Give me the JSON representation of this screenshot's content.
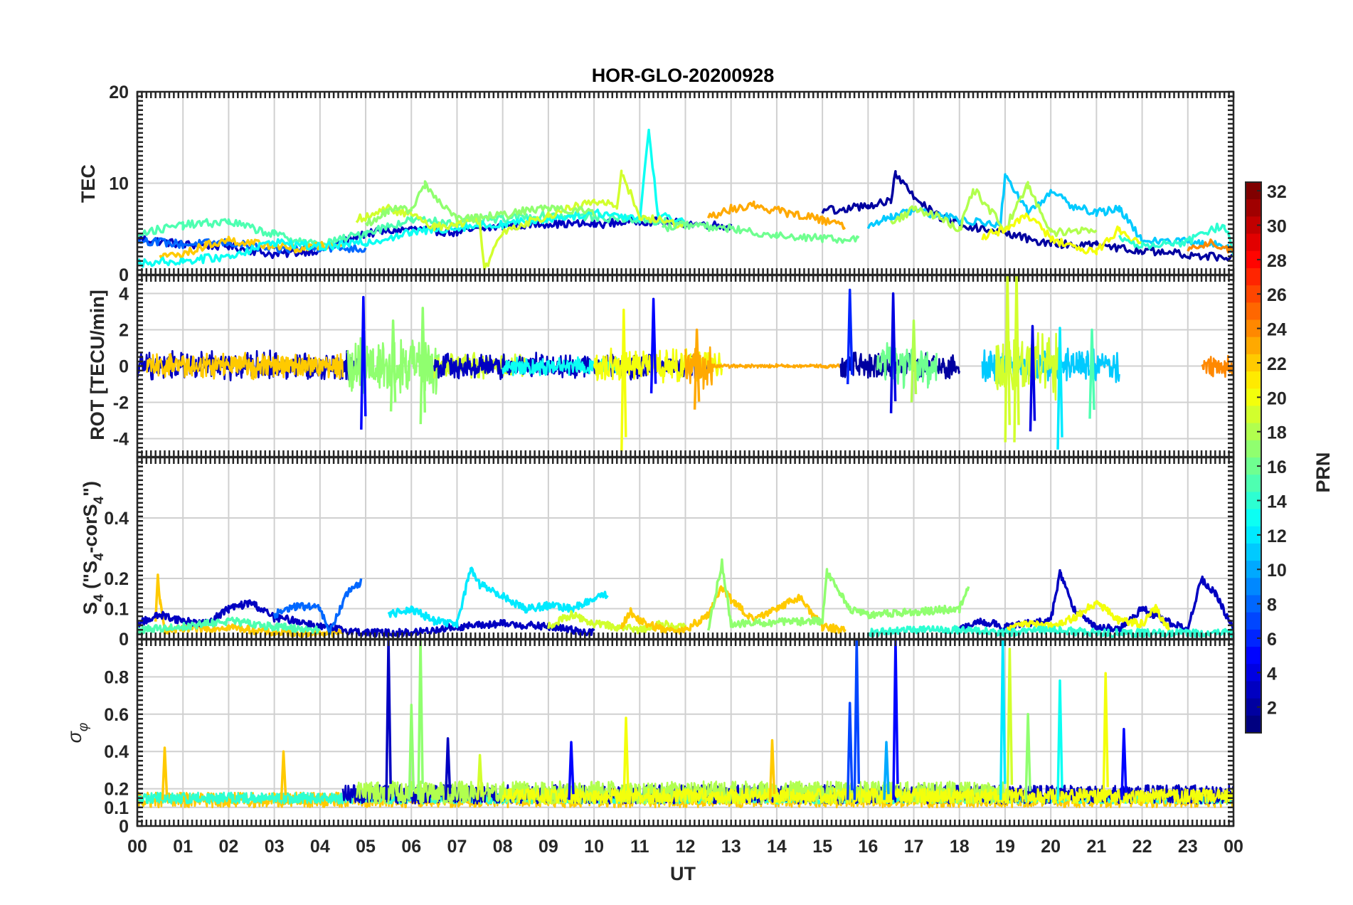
{
  "chart_data": [
    {
      "type": "line",
      "title": "HOR-GLO-20200928",
      "ylabel": "TEC",
      "ylim": [
        0,
        20
      ],
      "yticks": [
        0,
        10,
        20
      ],
      "xlim": [
        0,
        24
      ],
      "grid": true,
      "x_unit": "UT hours",
      "series": [
        {
          "prn": 3,
          "x": [
            0,
            1,
            2,
            3,
            4,
            5,
            6,
            7,
            8,
            9,
            10,
            11,
            12,
            13
          ],
          "values": [
            4.0,
            3.3,
            3.1,
            2.2,
            2.7,
            4.5,
            5.0,
            4.6,
            5.3,
            5.6,
            5.5,
            5.9,
            5.6,
            5.3
          ]
        },
        {
          "prn": 8,
          "x": [
            0,
            1,
            2,
            3,
            4,
            5
          ],
          "values": [
            3.8,
            3.3,
            3.5,
            2.7,
            3.0,
            2.8
          ]
        },
        {
          "prn": 15,
          "x": [
            0,
            1,
            2,
            3,
            4,
            5,
            6,
            7,
            8,
            9,
            10,
            11,
            12
          ],
          "values": [
            4.5,
            5.4,
            5.8,
            4.4,
            3.2,
            4.6,
            6.0,
            5.7,
            6.1,
            6.5,
            6.3,
            6.0,
            5.6
          ]
        },
        {
          "prn": 22,
          "x": [
            0.5,
            1,
            1.5,
            2,
            2.5,
            3,
            3.5,
            4,
            4.5
          ],
          "values": [
            2.0,
            2.2,
            3.2,
            3.8,
            3.4,
            3.2,
            2.8,
            3.1,
            3.3
          ]
        },
        {
          "prn": 13,
          "x": [
            0,
            1,
            2,
            3,
            4,
            5,
            6,
            7,
            8,
            9,
            10,
            11,
            11.2,
            11.4,
            12
          ],
          "values": [
            1.3,
            1.5,
            2.0,
            3.6,
            3.0,
            3.5,
            4.6,
            5.2,
            5.5,
            6.1,
            6.8,
            6.2,
            15.8,
            6.5,
            5.8
          ]
        },
        {
          "prn": 19,
          "x": [
            4.8,
            5.5,
            6.0,
            6.5,
            7,
            7.5,
            7.6,
            8,
            9,
            10,
            10.5,
            10.6,
            11,
            12
          ],
          "values": [
            6.0,
            7.2,
            6.6,
            5.2,
            5.6,
            6.0,
            0.5,
            4.8,
            6.5,
            8.0,
            7.5,
            11.3,
            6.3,
            5.4
          ]
        },
        {
          "prn": 17,
          "x": [
            5,
            5.5,
            6,
            6.3,
            7,
            8,
            9,
            10
          ],
          "values": [
            5.5,
            7.0,
            7.2,
            9.8,
            6.0,
            6.5,
            7.4,
            6.8
          ]
        },
        {
          "prn": 23,
          "x": [
            12.5,
            13,
            13.5,
            14,
            14.5,
            15,
            15.5
          ],
          "values": [
            6.2,
            7.2,
            7.6,
            7.0,
            6.5,
            6.0,
            5.4
          ]
        },
        {
          "prn": 16,
          "x": [
            11.5,
            12,
            13,
            14,
            15,
            15.8
          ],
          "values": [
            5.1,
            5.5,
            5.0,
            4.3,
            4.0,
            3.8
          ]
        },
        {
          "prn": 2,
          "x": [
            15,
            15.5,
            16,
            16.5,
            16.6,
            17,
            17.5,
            18,
            19,
            20,
            21,
            22,
            23,
            24
          ],
          "values": [
            7.0,
            7.2,
            7.6,
            8.0,
            11.0,
            8.5,
            6.5,
            5.5,
            4.5,
            3.4,
            3.2,
            2.6,
            2.2,
            1.8
          ]
        },
        {
          "prn": 11,
          "x": [
            16,
            16.5,
            17,
            18,
            18.9,
            19,
            19.5,
            20,
            20.5,
            21,
            21.5,
            22,
            23,
            24
          ],
          "values": [
            5.4,
            6.4,
            7.0,
            6.0,
            5.5,
            11.0,
            6.8,
            9.0,
            7.5,
            6.8,
            7.2,
            3.8,
            3.6,
            3.0
          ]
        },
        {
          "prn": 18,
          "x": [
            16.5,
            17,
            17.5,
            18,
            18.3,
            19,
            19.5,
            20,
            21
          ],
          "values": [
            5.6,
            7.2,
            6.4,
            4.8,
            9.4,
            5.0,
            9.8,
            4.6,
            5.0
          ]
        },
        {
          "prn": 20,
          "x": [
            18.5,
            19,
            19.5,
            20,
            20.5,
            21,
            21.5,
            22
          ],
          "values": [
            4.2,
            5.0,
            6.5,
            4.0,
            3.0,
            2.5,
            5.0,
            3.2
          ]
        },
        {
          "prn": 14,
          "x": [
            21.5,
            22,
            23,
            23.8,
            24
          ],
          "values": [
            4.0,
            3.2,
            3.6,
            5.5,
            2.5
          ]
        },
        {
          "prn": 24,
          "x": [
            23,
            23.5,
            24
          ],
          "values": [
            3.0,
            3.5,
            2.6
          ]
        }
      ]
    },
    {
      "type": "line",
      "ylabel": "ROT [TECU/min]",
      "ylim": [
        -5,
        5
      ],
      "yticks": [
        -4,
        -2,
        0,
        2,
        4
      ],
      "xlim": [
        0,
        24
      ],
      "grid": true,
      "noise_intervals": [
        {
          "prn": 3,
          "start": 0.0,
          "end": 4.9,
          "amp": 0.9
        },
        {
          "prn": 22,
          "start": 0.2,
          "end": 4.5,
          "amp": 0.8
        },
        {
          "prn": 17,
          "start": 4.6,
          "end": 6.6,
          "amp": 1.8
        },
        {
          "prn": 19,
          "start": 6.5,
          "end": 8.5,
          "amp": 0.8
        },
        {
          "prn": 3,
          "start": 6.5,
          "end": 12.5,
          "amp": 0.8
        },
        {
          "prn": 13,
          "start": 8.0,
          "end": 10.5,
          "amp": 0.6
        },
        {
          "prn": 20,
          "start": 10.0,
          "end": 12.8,
          "amp": 1.1
        },
        {
          "prn": 23,
          "start": 12.0,
          "end": 12.6,
          "amp": 1.4
        },
        {
          "prn": 23,
          "start": 12.6,
          "end": 15.5,
          "amp": 0.12
        },
        {
          "prn": 2,
          "start": 15.4,
          "end": 18.0,
          "amp": 0.8
        },
        {
          "prn": 16,
          "start": 16.2,
          "end": 17.5,
          "amp": 1.4
        },
        {
          "prn": 11,
          "start": 18.5,
          "end": 21.5,
          "amp": 1.0
        },
        {
          "prn": 19,
          "start": 18.8,
          "end": 20.2,
          "amp": 2.0
        },
        {
          "prn": 24,
          "start": 23.3,
          "end": 24.0,
          "amp": 0.7
        }
      ],
      "spikes": [
        {
          "prn": 5,
          "x": 4.95,
          "lo": -3.5,
          "hi": 3.8
        },
        {
          "prn": 17,
          "x": 5.6,
          "lo": -2.5,
          "hi": 2.5
        },
        {
          "prn": 17,
          "x": 6.25,
          "lo": -3.2,
          "hi": 3.2
        },
        {
          "prn": 20,
          "x": 10.65,
          "lo": -4.7,
          "hi": 3.1
        },
        {
          "prn": 5,
          "x": 11.3,
          "lo": -1.5,
          "hi": 3.7
        },
        {
          "prn": 23,
          "x": 12.25,
          "lo": -2.4,
          "hi": 2.0
        },
        {
          "prn": 6,
          "x": 15.6,
          "lo": -1.0,
          "hi": 4.2
        },
        {
          "prn": 4,
          "x": 16.55,
          "lo": -2.6,
          "hi": 4.0
        },
        {
          "prn": 18,
          "x": 17.0,
          "lo": -2.0,
          "hi": 2.5
        },
        {
          "prn": 19,
          "x": 19.05,
          "lo": -4.2,
          "hi": 5.3
        },
        {
          "prn": 19,
          "x": 19.25,
          "lo": -4.2,
          "hi": 5.3
        },
        {
          "prn": 4,
          "x": 19.6,
          "lo": -3.6,
          "hi": 2.2
        },
        {
          "prn": 12,
          "x": 20.2,
          "lo": -4.6,
          "hi": 2.1
        },
        {
          "prn": 15,
          "x": 20.9,
          "lo": -2.9,
          "hi": 2.0
        }
      ]
    },
    {
      "type": "line",
      "ylabel": "S4 (\"S4-corS4\")",
      "ylabel_parts": {
        "main": "S",
        "sub1": "4",
        "mid1": " (\"S",
        "sub2": "4",
        "mid2": "-corS",
        "sub3": "4",
        "end": "\")"
      },
      "ylim": [
        0,
        0.6
      ],
      "yticks": [
        0,
        0.1,
        0.2,
        0.4
      ],
      "xlim": [
        0,
        24
      ],
      "grid": true,
      "series": [
        {
          "prn": 22,
          "x": [
            0.4,
            0.45,
            0.5,
            0.55,
            0.6,
            1,
            2,
            3,
            4,
            4.5
          ],
          "values": [
            0.05,
            0.21,
            0.12,
            0.07,
            0.03,
            0.03,
            0.04,
            0.02,
            0.02,
            0.02
          ]
        },
        {
          "prn": 3,
          "x": [
            0,
            0.5,
            1,
            1.5,
            2,
            2.5,
            3,
            3.5,
            4,
            4.5,
            5,
            6,
            7,
            8,
            9,
            10
          ],
          "values": [
            0.05,
            0.08,
            0.06,
            0.05,
            0.1,
            0.12,
            0.07,
            0.06,
            0.04,
            0.03,
            0.02,
            0.02,
            0.04,
            0.05,
            0.04,
            0.02
          ]
        },
        {
          "prn": 8,
          "x": [
            3,
            3.5,
            4,
            4.2,
            4.6,
            4.9
          ],
          "values": [
            0.08,
            0.11,
            0.1,
            0.02,
            0.15,
            0.19
          ]
        },
        {
          "prn": 15,
          "x": [
            0,
            1,
            2,
            3,
            4
          ],
          "values": [
            0.03,
            0.04,
            0.06,
            0.04,
            0.03
          ]
        },
        {
          "prn": 12,
          "x": [
            5.5,
            6,
            6.5,
            7,
            7.3,
            7.5,
            8,
            8.5,
            9,
            9.5,
            10,
            10.3
          ],
          "values": [
            0.08,
            0.1,
            0.06,
            0.05,
            0.23,
            0.18,
            0.14,
            0.1,
            0.11,
            0.1,
            0.13,
            0.15
          ]
        },
        {
          "prn": 19,
          "x": [
            9,
            9.5,
            10,
            10.5,
            11,
            11.5,
            12
          ],
          "values": [
            0.04,
            0.08,
            0.05,
            0.04,
            0.03,
            0.05,
            0.04
          ]
        },
        {
          "prn": 22,
          "x": [
            10.6,
            10.8,
            11,
            11.5,
            12,
            12.5,
            12.8,
            13,
            13.5,
            14,
            14.5,
            15,
            15.5
          ],
          "values": [
            0.04,
            0.09,
            0.06,
            0.03,
            0.03,
            0.08,
            0.17,
            0.13,
            0.06,
            0.1,
            0.14,
            0.04,
            0.03
          ]
        },
        {
          "prn": 17,
          "x": [
            12.5,
            12.8,
            13,
            15,
            15.1,
            15.3,
            15.6,
            16,
            17,
            18,
            18.2
          ],
          "values": [
            0.03,
            0.25,
            0.05,
            0.06,
            0.22,
            0.17,
            0.1,
            0.08,
            0.09,
            0.1,
            0.18
          ]
        },
        {
          "prn": 3,
          "x": [
            18,
            18.5,
            19,
            19.5,
            20,
            20.2,
            20.5,
            21,
            21.5,
            22,
            22.5,
            23,
            23.3,
            23.6,
            24
          ],
          "values": [
            0.03,
            0.06,
            0.04,
            0.05,
            0.06,
            0.22,
            0.1,
            0.04,
            0.03,
            0.1,
            0.06,
            0.03,
            0.2,
            0.15,
            0.03
          ]
        },
        {
          "prn": 20,
          "x": [
            19,
            19.5,
            20,
            20.5,
            21,
            21.5,
            22,
            22.3,
            22.6
          ],
          "values": [
            0.03,
            0.05,
            0.04,
            0.07,
            0.12,
            0.06,
            0.05,
            0.1,
            0.03
          ]
        },
        {
          "prn": 14,
          "x": [
            16,
            17,
            18,
            19,
            20,
            21,
            22,
            23,
            24
          ],
          "values": [
            0.02,
            0.03,
            0.03,
            0.02,
            0.03,
            0.02,
            0.02,
            0.02,
            0.02
          ]
        }
      ]
    },
    {
      "type": "line",
      "ylabel": "σφ",
      "ylabel_parts": {
        "main": "σ",
        "sub": "φ"
      },
      "ylim": [
        0,
        1
      ],
      "yticks": [
        0,
        0.1,
        0.2,
        0.4,
        0.6,
        0.8
      ],
      "xlim": [
        0,
        24
      ],
      "xticks": [
        "00",
        "01",
        "02",
        "03",
        "04",
        "05",
        "06",
        "07",
        "08",
        "09",
        "10",
        "11",
        "12",
        "13",
        "14",
        "15",
        "16",
        "17",
        "18",
        "19",
        "20",
        "21",
        "22",
        "23",
        "00"
      ],
      "xlabel": "UT",
      "grid": true,
      "baseline_noise": [
        {
          "prn": 22,
          "start": 0.0,
          "end": 24.0,
          "mid": 0.14,
          "amp": 0.04
        },
        {
          "prn": 14,
          "start": 0.0,
          "end": 24.0,
          "mid": 0.15,
          "amp": 0.03
        },
        {
          "prn": 3,
          "start": 4.5,
          "end": 24.0,
          "mid": 0.17,
          "amp": 0.05
        },
        {
          "prn": 18,
          "start": 4.8,
          "end": 19.0,
          "mid": 0.18,
          "amp": 0.06
        },
        {
          "prn": 20,
          "start": 8.0,
          "end": 24.0,
          "mid": 0.16,
          "amp": 0.04
        }
      ],
      "spikes": [
        {
          "prn": 22,
          "x": 0.6,
          "hi": 0.42
        },
        {
          "prn": 22,
          "x": 3.2,
          "hi": 0.4
        },
        {
          "prn": 3,
          "x": 5.5,
          "hi": 1.0
        },
        {
          "prn": 17,
          "x": 6.0,
          "hi": 0.65
        },
        {
          "prn": 17,
          "x": 6.2,
          "hi": 1.0
        },
        {
          "prn": 3,
          "x": 6.8,
          "hi": 0.47
        },
        {
          "prn": 19,
          "x": 7.5,
          "hi": 0.38
        },
        {
          "prn": 5,
          "x": 9.5,
          "hi": 0.45
        },
        {
          "prn": 20,
          "x": 10.7,
          "hi": 0.58
        },
        {
          "prn": 22,
          "x": 13.9,
          "hi": 0.46
        },
        {
          "prn": 7,
          "x": 15.6,
          "hi": 0.66
        },
        {
          "prn": 7,
          "x": 15.75,
          "hi": 1.0
        },
        {
          "prn": 10,
          "x": 16.4,
          "hi": 0.45
        },
        {
          "prn": 5,
          "x": 16.6,
          "hi": 1.0
        },
        {
          "prn": 12,
          "x": 18.95,
          "hi": 1.0
        },
        {
          "prn": 19,
          "x": 19.1,
          "hi": 0.95
        },
        {
          "prn": 17,
          "x": 19.5,
          "hi": 0.6
        },
        {
          "prn": 13,
          "x": 20.2,
          "hi": 0.78
        },
        {
          "prn": 20,
          "x": 21.2,
          "hi": 0.82
        },
        {
          "prn": 5,
          "x": 21.6,
          "hi": 0.52
        }
      ]
    }
  ],
  "colorbar": {
    "label": "PRN",
    "min": 1,
    "max": 32,
    "ticks": [
      2,
      4,
      6,
      8,
      10,
      12,
      14,
      16,
      18,
      20,
      22,
      24,
      26,
      28,
      30,
      32
    ],
    "colormap": "jet"
  }
}
